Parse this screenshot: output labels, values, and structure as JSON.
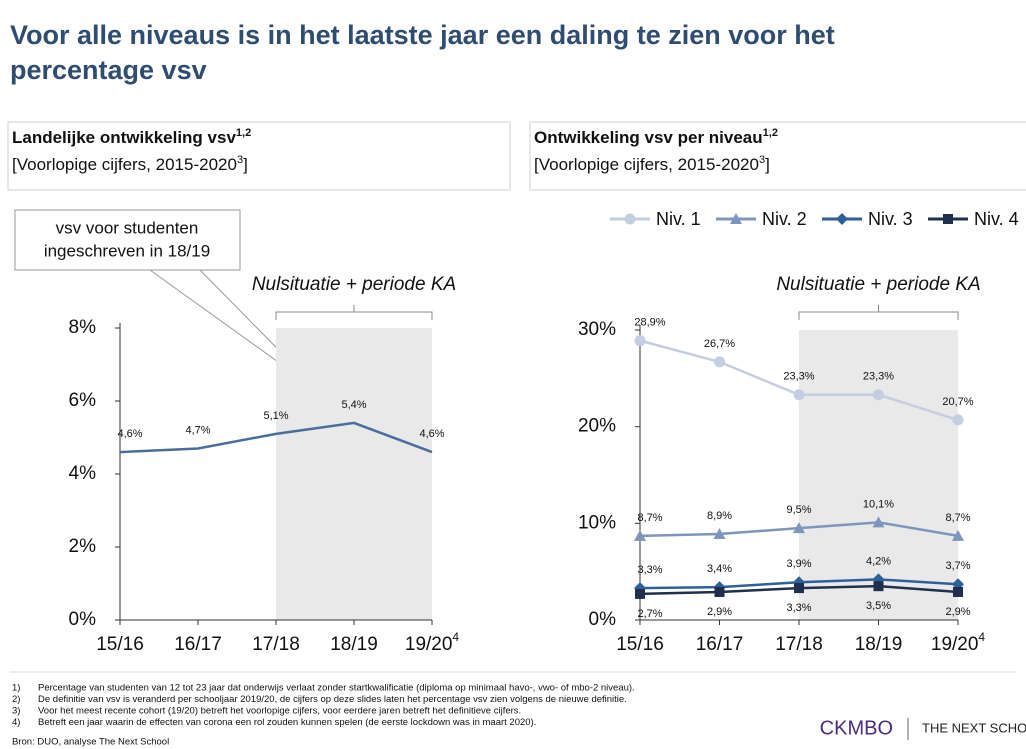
{
  "title": [
    "Voor alle niveaus is in het laatste jaar een daling te zien voor het",
    "percentage vsv"
  ],
  "chart_data": [
    {
      "type": "line",
      "title": "Landelijke ontwikkeling vsv",
      "title_sup": "1,2",
      "subtitle": "[Voorlopige cijfers, 2015-2020",
      "subtitle_sup": "3",
      "subtitle_end": "]",
      "categories": [
        "15/16",
        "16/17",
        "17/18",
        "18/19",
        "19/20"
      ],
      "category_sups": [
        null,
        null,
        null,
        null,
        "4"
      ],
      "series": [
        {
          "name": null,
          "color": "#4a6d9c",
          "marker": "none",
          "label_position": "above",
          "values": [
            4.6,
            4.7,
            5.1,
            5.4,
            4.6
          ],
          "value_labels": [
            "4,6%",
            "4,7%",
            "5,1%",
            "5,4%",
            "4,6%"
          ]
        }
      ],
      "ylim": [
        0,
        8
      ],
      "yticks": [
        {
          "value": 0,
          "label": "0%"
        },
        {
          "value": 2,
          "label": "2%"
        },
        {
          "value": 4,
          "label": "4%"
        },
        {
          "value": 6,
          "label": "6%"
        },
        {
          "value": 8,
          "label": "8%"
        }
      ],
      "shade": {
        "label": "Nulsituatie + periode KA",
        "from": "17/18",
        "to": "19/20"
      },
      "annotation": [
        "vsv voor studenten",
        "ingeschreven in 18/19"
      ],
      "legend": false
    },
    {
      "type": "line",
      "title": "Ontwikkeling vsv per niveau",
      "title_sup": "1,2",
      "subtitle": "[Voorlopige cijfers, 2015-2020",
      "subtitle_sup": "3",
      "subtitle_end": "]",
      "categories": [
        "15/16",
        "16/17",
        "17/18",
        "18/19",
        "19/20"
      ],
      "category_sups": [
        null,
        null,
        null,
        null,
        "4"
      ],
      "series": [
        {
          "name": "Niv. 1",
          "color": "#c3cfe0",
          "marker": "circle",
          "label_position": "above",
          "values": [
            28.9,
            26.7,
            23.3,
            23.3,
            20.7
          ],
          "value_labels": [
            "28,9%",
            "26,7%",
            "23,3%",
            "23,3%",
            "20,7%"
          ]
        },
        {
          "name": "Niv. 2",
          "color": "#7e95bd",
          "marker": "triangle",
          "label_position": "above",
          "values": [
            8.7,
            8.9,
            9.5,
            10.1,
            8.7
          ],
          "value_labels": [
            "8,7%",
            "8,9%",
            "9,5%",
            "10,1%",
            "8,7%"
          ]
        },
        {
          "name": "Niv. 3",
          "color": "#2f5f99",
          "marker": "diamond",
          "label_position": "above",
          "values": [
            3.3,
            3.4,
            3.9,
            4.2,
            3.7
          ],
          "value_labels": [
            "3,3%",
            "3,4%",
            "3,9%",
            "4,2%",
            "3,7%"
          ]
        },
        {
          "name": "Niv. 4",
          "color": "#1f2f4d",
          "marker": "square",
          "label_position": "below",
          "values": [
            2.7,
            2.9,
            3.3,
            3.5,
            2.9
          ],
          "value_labels": [
            "2,7%",
            "2,9%",
            "3,3%",
            "3,5%",
            "2,9%"
          ]
        }
      ],
      "ylim": [
        0,
        30
      ],
      "yticks": [
        {
          "value": 0,
          "label": "0%"
        },
        {
          "value": 10,
          "label": "10%"
        },
        {
          "value": 20,
          "label": "20%"
        },
        {
          "value": 30,
          "label": "30%"
        }
      ],
      "shade": {
        "label": "Nulsituatie + periode KA",
        "from": "17/18",
        "to": "19/20"
      },
      "legend": true
    }
  ],
  "footnotes": [
    {
      "number": "1)",
      "text": "Percentage van studenten van 12 tot 23 jaar dat onderwijs verlaat zonder startkwalificatie (diploma op minimaal havo-, vwo- of mbo-2 niveau)."
    },
    {
      "number": "2)",
      "text": "De definitie van vsv is veranderd per schooljaar 2019/20, de cijfers op deze slides laten het percentage vsv zien volgens de nieuwe definitie."
    },
    {
      "number": "3)",
      "text": "Voor het meest recente cohort (19/20) betreft het voorlopige cijfers, voor eerdere jaren betreft het definitieve cijfers."
    },
    {
      "number": "4)",
      "text": "Betreft een jaar waarin de effecten van corona een rol zouden kunnen spelen (de eerste lockdown was in maart 2020)."
    }
  ],
  "source": "Bron: DUO, analyse The Next School",
  "logos": [
    "CKMBO",
    "THE NEXT SCHOOL"
  ]
}
